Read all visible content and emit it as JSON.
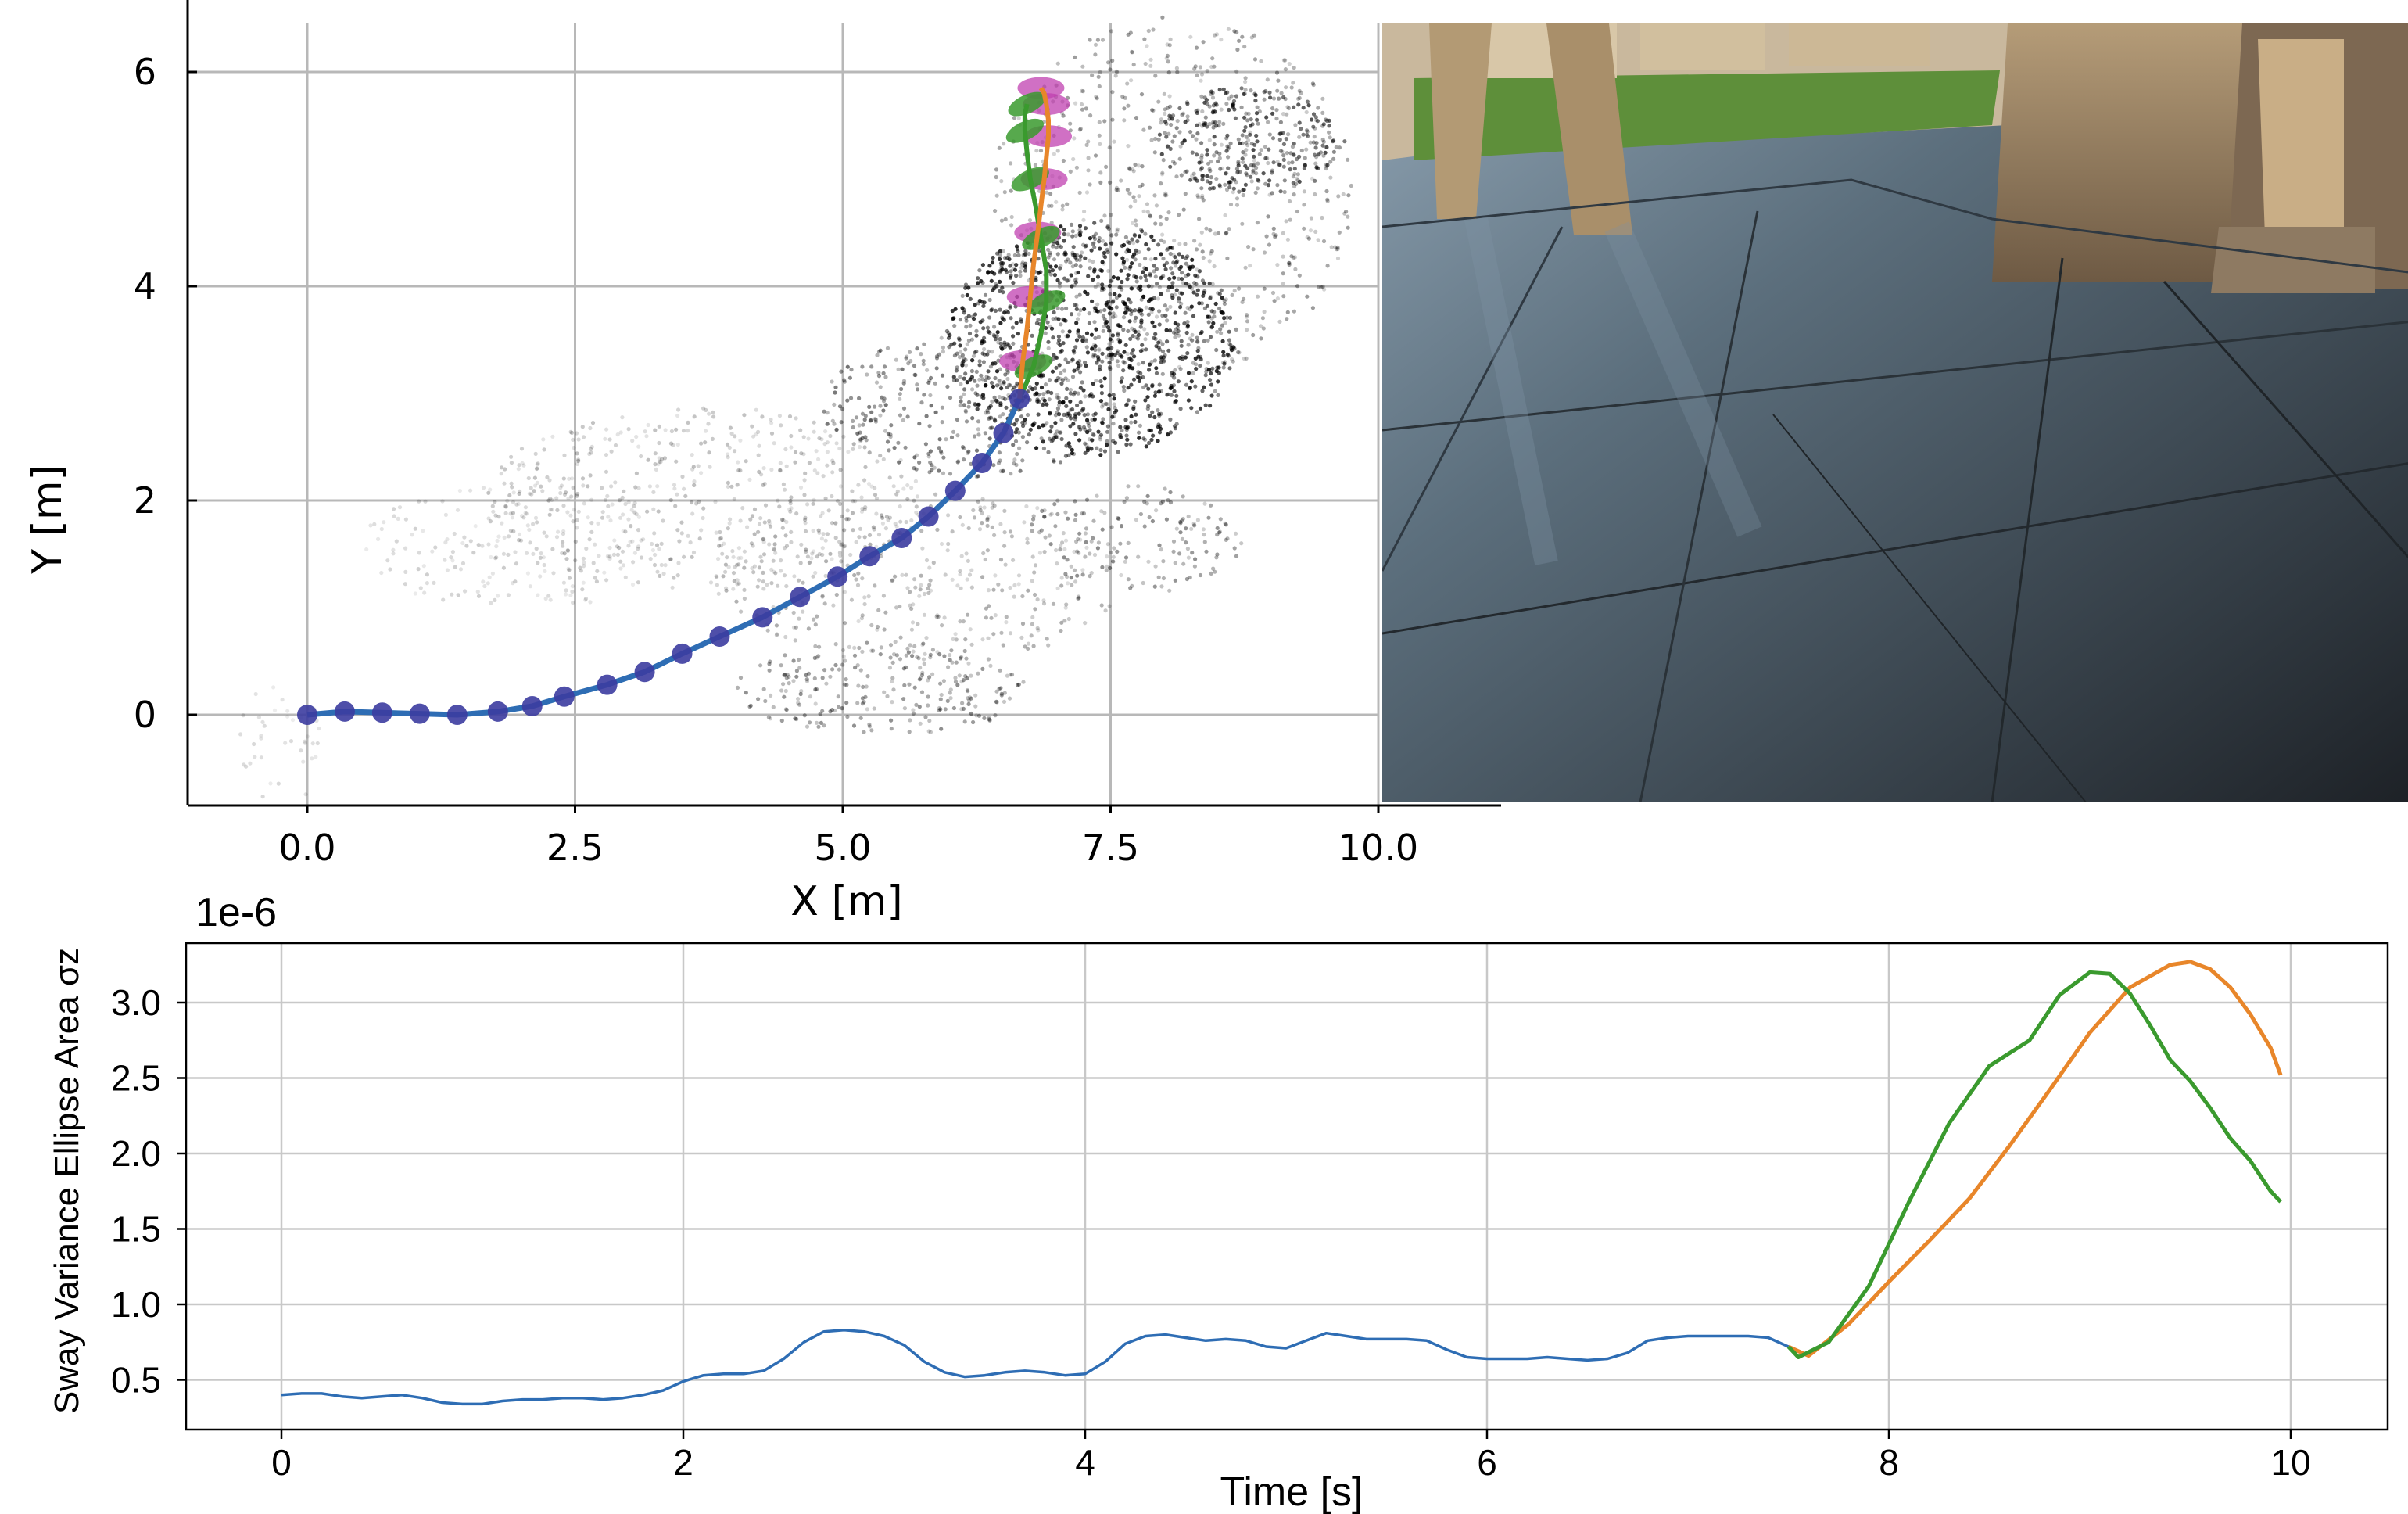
{
  "chart_data": [
    {
      "type": "scatter",
      "xlabel": "X [m]",
      "ylabel": "Y [m]",
      "xlim": [
        -1.1,
        11.0
      ],
      "ylim": [
        -0.9,
        6.6
      ],
      "xticks": [
        "0.0",
        "2.5",
        "5.0",
        "7.5",
        "10.0"
      ],
      "xtick_values": [
        0,
        2.5,
        5,
        7.5,
        10
      ],
      "yticks": [
        "0",
        "2",
        "4",
        "6"
      ],
      "ytick_values": [
        0,
        2,
        4,
        6
      ],
      "grid": true,
      "colors": {
        "history": "#2e6db4",
        "history_marker": "#3c3ca0",
        "pred_a": "#e8862a",
        "pred_b": "#3a9a2e",
        "ellipse_a": "#c040b0",
        "ellipse_b": "#3a9a2e",
        "cloud": "#000000"
      },
      "series": [
        {
          "x": [
            0,
            0.35,
            0.7,
            1.05,
            1.4,
            1.78,
            2.1,
            2.4,
            2.8,
            3.15,
            3.5,
            3.85,
            4.25,
            4.6,
            4.95,
            5.25,
            5.55,
            5.8,
            6.05,
            6.3,
            6.5,
            6.65
          ],
          "y": [
            0,
            0.03,
            0.02,
            0.01,
            0.0,
            0.03,
            0.08,
            0.17,
            0.28,
            0.4,
            0.57,
            0.73,
            0.91,
            1.1,
            1.29,
            1.48,
            1.65,
            1.85,
            2.09,
            2.35,
            2.63,
            2.95
          ]
        },
        {
          "x": [
            6.65,
            6.68,
            6.72,
            6.75,
            6.78,
            6.82,
            6.85,
            6.88,
            6.9,
            6.92,
            6.92,
            6.9,
            6.88,
            6.85
          ],
          "y": [
            2.95,
            3.3,
            3.6,
            3.9,
            4.2,
            4.5,
            4.75,
            5.0,
            5.2,
            5.4,
            5.55,
            5.7,
            5.8,
            5.85
          ]
        },
        {
          "x": [
            6.65,
            6.78,
            6.85,
            6.9,
            6.9,
            6.85,
            6.8,
            6.75,
            6.72,
            6.7,
            6.7,
            6.72
          ],
          "y": [
            2.95,
            3.25,
            3.55,
            3.85,
            4.15,
            4.45,
            4.75,
            5.0,
            5.25,
            5.45,
            5.6,
            5.7
          ]
        }
      ]
    },
    {
      "type": "line",
      "xlabel": "Time [s]",
      "ylabel": "Sway Variance Ellipse Area σz",
      "offset_label": "1e-6",
      "xlim": [
        -0.5,
        10.5
      ],
      "ylim": [
        0.25,
        3.5
      ],
      "xticks": [
        "0",
        "2",
        "4",
        "6",
        "8",
        "10"
      ],
      "xtick_values": [
        0,
        2,
        4,
        6,
        8,
        10
      ],
      "yticks": [
        "0.5",
        "1.0",
        "1.5",
        "2.0",
        "2.5",
        "3.0"
      ],
      "ytick_values": [
        0.5,
        1.0,
        1.5,
        2.0,
        2.5,
        3.0
      ],
      "grid": true,
      "series": [
        {
          "color": "#2e6db4",
          "x": [
            0,
            0.1,
            0.2,
            0.3,
            0.4,
            0.5,
            0.6,
            0.7,
            0.8,
            0.9,
            1.0,
            1.1,
            1.2,
            1.3,
            1.4,
            1.5,
            1.6,
            1.7,
            1.8,
            1.9,
            2.0,
            2.1,
            2.2,
            2.3,
            2.4,
            2.5,
            2.6,
            2.7,
            2.8,
            2.9,
            3.0,
            3.1,
            3.2,
            3.3,
            3.4,
            3.5,
            3.6,
            3.7,
            3.8,
            3.9,
            4.0,
            4.1,
            4.2,
            4.3,
            4.4,
            4.5,
            4.6,
            4.7,
            4.8,
            4.9,
            5.0,
            5.1,
            5.2,
            5.3,
            5.4,
            5.5,
            5.6,
            5.7,
            5.8,
            5.9,
            6.0,
            6.1,
            6.2,
            6.3,
            6.4,
            6.5,
            6.6,
            6.7,
            6.8,
            6.9,
            7.0,
            7.1,
            7.2,
            7.3,
            7.4,
            7.5
          ],
          "y": [
            0.4,
            0.41,
            0.41,
            0.39,
            0.38,
            0.39,
            0.4,
            0.38,
            0.35,
            0.34,
            0.34,
            0.36,
            0.37,
            0.37,
            0.38,
            0.38,
            0.37,
            0.38,
            0.4,
            0.43,
            0.49,
            0.53,
            0.54,
            0.54,
            0.56,
            0.64,
            0.75,
            0.82,
            0.83,
            0.82,
            0.79,
            0.73,
            0.62,
            0.55,
            0.52,
            0.53,
            0.55,
            0.56,
            0.55,
            0.53,
            0.54,
            0.62,
            0.74,
            0.79,
            0.8,
            0.78,
            0.76,
            0.77,
            0.76,
            0.72,
            0.71,
            0.76,
            0.81,
            0.79,
            0.77,
            0.77,
            0.77,
            0.76,
            0.7,
            0.65,
            0.64,
            0.64,
            0.64,
            0.65,
            0.64,
            0.63,
            0.64,
            0.68,
            0.76,
            0.78,
            0.79,
            0.79,
            0.79,
            0.79,
            0.78,
            0.72
          ]
        },
        {
          "color": "#e8862a",
          "x": [
            7.5,
            7.6,
            7.8,
            8.0,
            8.2,
            8.4,
            8.6,
            8.8,
            9.0,
            9.2,
            9.4,
            9.5,
            9.6,
            9.7,
            9.8,
            9.9,
            9.95
          ],
          "y": [
            0.72,
            0.66,
            0.87,
            1.15,
            1.42,
            1.7,
            2.05,
            2.42,
            2.8,
            3.1,
            3.25,
            3.27,
            3.22,
            3.1,
            2.92,
            2.7,
            2.52
          ]
        },
        {
          "color": "#3a9a2e",
          "x": [
            7.5,
            7.55,
            7.7,
            7.9,
            8.1,
            8.3,
            8.5,
            8.7,
            8.85,
            9.0,
            9.1,
            9.2,
            9.3,
            9.4,
            9.5,
            9.6,
            9.7,
            9.8,
            9.9,
            9.95
          ],
          "y": [
            0.72,
            0.65,
            0.75,
            1.12,
            1.68,
            2.2,
            2.58,
            2.75,
            3.05,
            3.2,
            3.19,
            3.06,
            2.85,
            2.62,
            2.48,
            2.3,
            2.1,
            1.95,
            1.75,
            1.68
          ]
        }
      ]
    }
  ]
}
